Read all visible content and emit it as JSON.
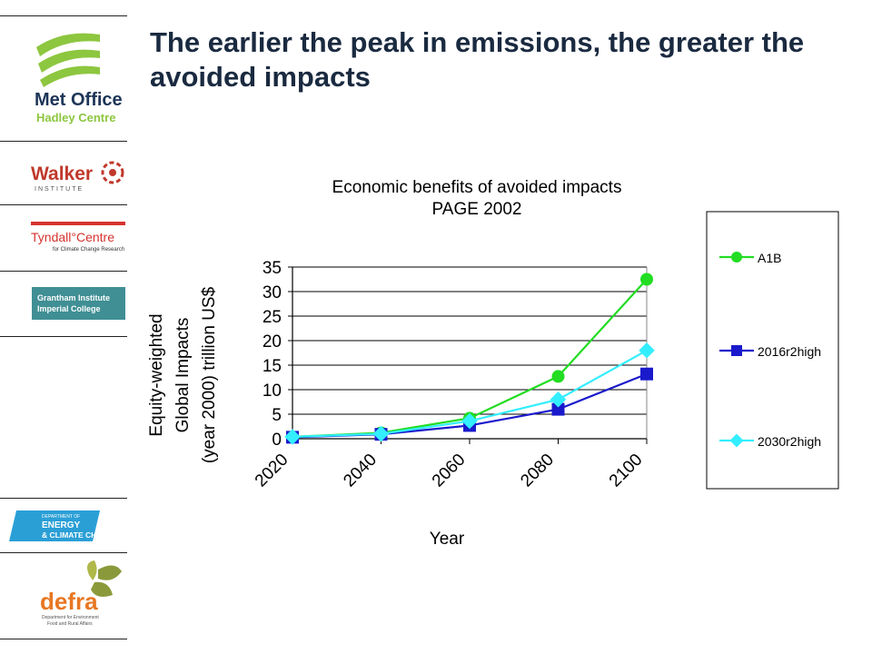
{
  "slide": {
    "title": "The earlier the peak in emissions, the greater the avoided impacts"
  },
  "logos": [
    {
      "name": "met-office-logo",
      "line1": "Met Office",
      "line2": "Hadley Centre"
    },
    {
      "name": "walker-institute-logo",
      "line1": "Walker",
      "line2": "INSTITUTE"
    },
    {
      "name": "tyndall-centre-logo",
      "line1": "Tyndall°Centre",
      "line2": "for Climate Change Research"
    },
    {
      "name": "grantham-institute-logo",
      "line1": "Grantham Institute",
      "line2": "Imperial College"
    },
    {
      "name": "decc-logo",
      "line1": "DEPARTMENT OF",
      "line2": "ENERGY",
      "line3": "& CLIMATE CHANGE"
    },
    {
      "name": "defra-logo",
      "line1": "defra",
      "line2": "Department for Environment",
      "line3": "Food and Rural Affairs"
    }
  ],
  "colors": {
    "met_office_green": "#8dc63f",
    "met_office_text": "#1d3557",
    "walker_red": "#c0392b",
    "tyndall_red": "#d6332e",
    "grantham_teal": "#3f8f94",
    "decc_blue": "#2a9fd6",
    "defra_orange": "#e87722",
    "defra_green": "#8a9a3b"
  },
  "chart_data": {
    "type": "line",
    "title": [
      "Economic benefits of avoided impacts",
      "PAGE 2002"
    ],
    "xlabel": "Year",
    "ylabel": [
      "Equity-weighted",
      "Global Impacts",
      "(year 2000) trillion US$"
    ],
    "categories": [
      "2020",
      "2040",
      "2060",
      "2080",
      "2100"
    ],
    "ylim": [
      0,
      35
    ],
    "yticks": [
      0,
      5,
      10,
      15,
      20,
      25,
      30,
      35
    ],
    "grid": true,
    "legend_position": "right",
    "series": [
      {
        "name": "A1B",
        "color": "#22dd22",
        "marker": "circle",
        "values": [
          0.4,
          1.2,
          4.2,
          12.7,
          32.5
        ]
      },
      {
        "name": "2016r2high",
        "color": "#1a1acc",
        "marker": "square",
        "values": [
          0.3,
          0.9,
          2.7,
          6.0,
          13.2
        ]
      },
      {
        "name": "2030r2high",
        "color": "#33eeff",
        "marker": "diamond",
        "values": [
          0.4,
          1.0,
          3.6,
          8.0,
          18.0
        ]
      }
    ]
  }
}
